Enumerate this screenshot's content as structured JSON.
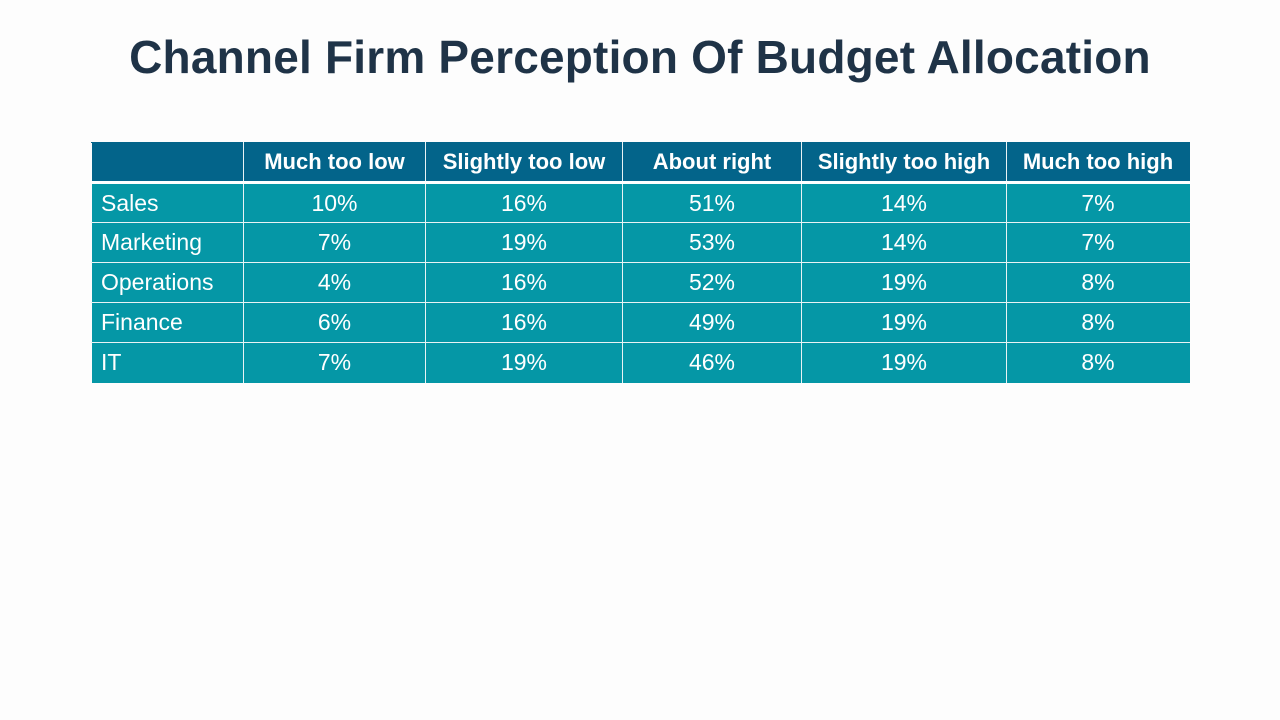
{
  "slide": {
    "title": "Channel Firm Perception Of Budget Allocation"
  },
  "table": {
    "corner": "",
    "columns": [
      "Much too low",
      "Slightly too low",
      "About right",
      "Slightly too high",
      "Much too high"
    ],
    "rows": [
      {
        "label": "Sales",
        "values": [
          "10%",
          "16%",
          "51%",
          "14%",
          "7%"
        ]
      },
      {
        "label": "Marketing",
        "values": [
          "7%",
          "19%",
          "53%",
          "14%",
          "7%"
        ]
      },
      {
        "label": "Operations",
        "values": [
          "4%",
          "16%",
          "52%",
          "19%",
          "8%"
        ]
      },
      {
        "label": "Finance",
        "values": [
          "6%",
          "16%",
          "49%",
          "19%",
          "8%"
        ]
      },
      {
        "label": "IT",
        "values": [
          "7%",
          "19%",
          "46%",
          "19%",
          "8%"
        ]
      }
    ]
  },
  "colors": {
    "title": "#1f3347",
    "header_bg": "#03648a",
    "cell_bg": "#0597a6",
    "cell_text": "#ffffff",
    "background": "#fdfdfd"
  }
}
